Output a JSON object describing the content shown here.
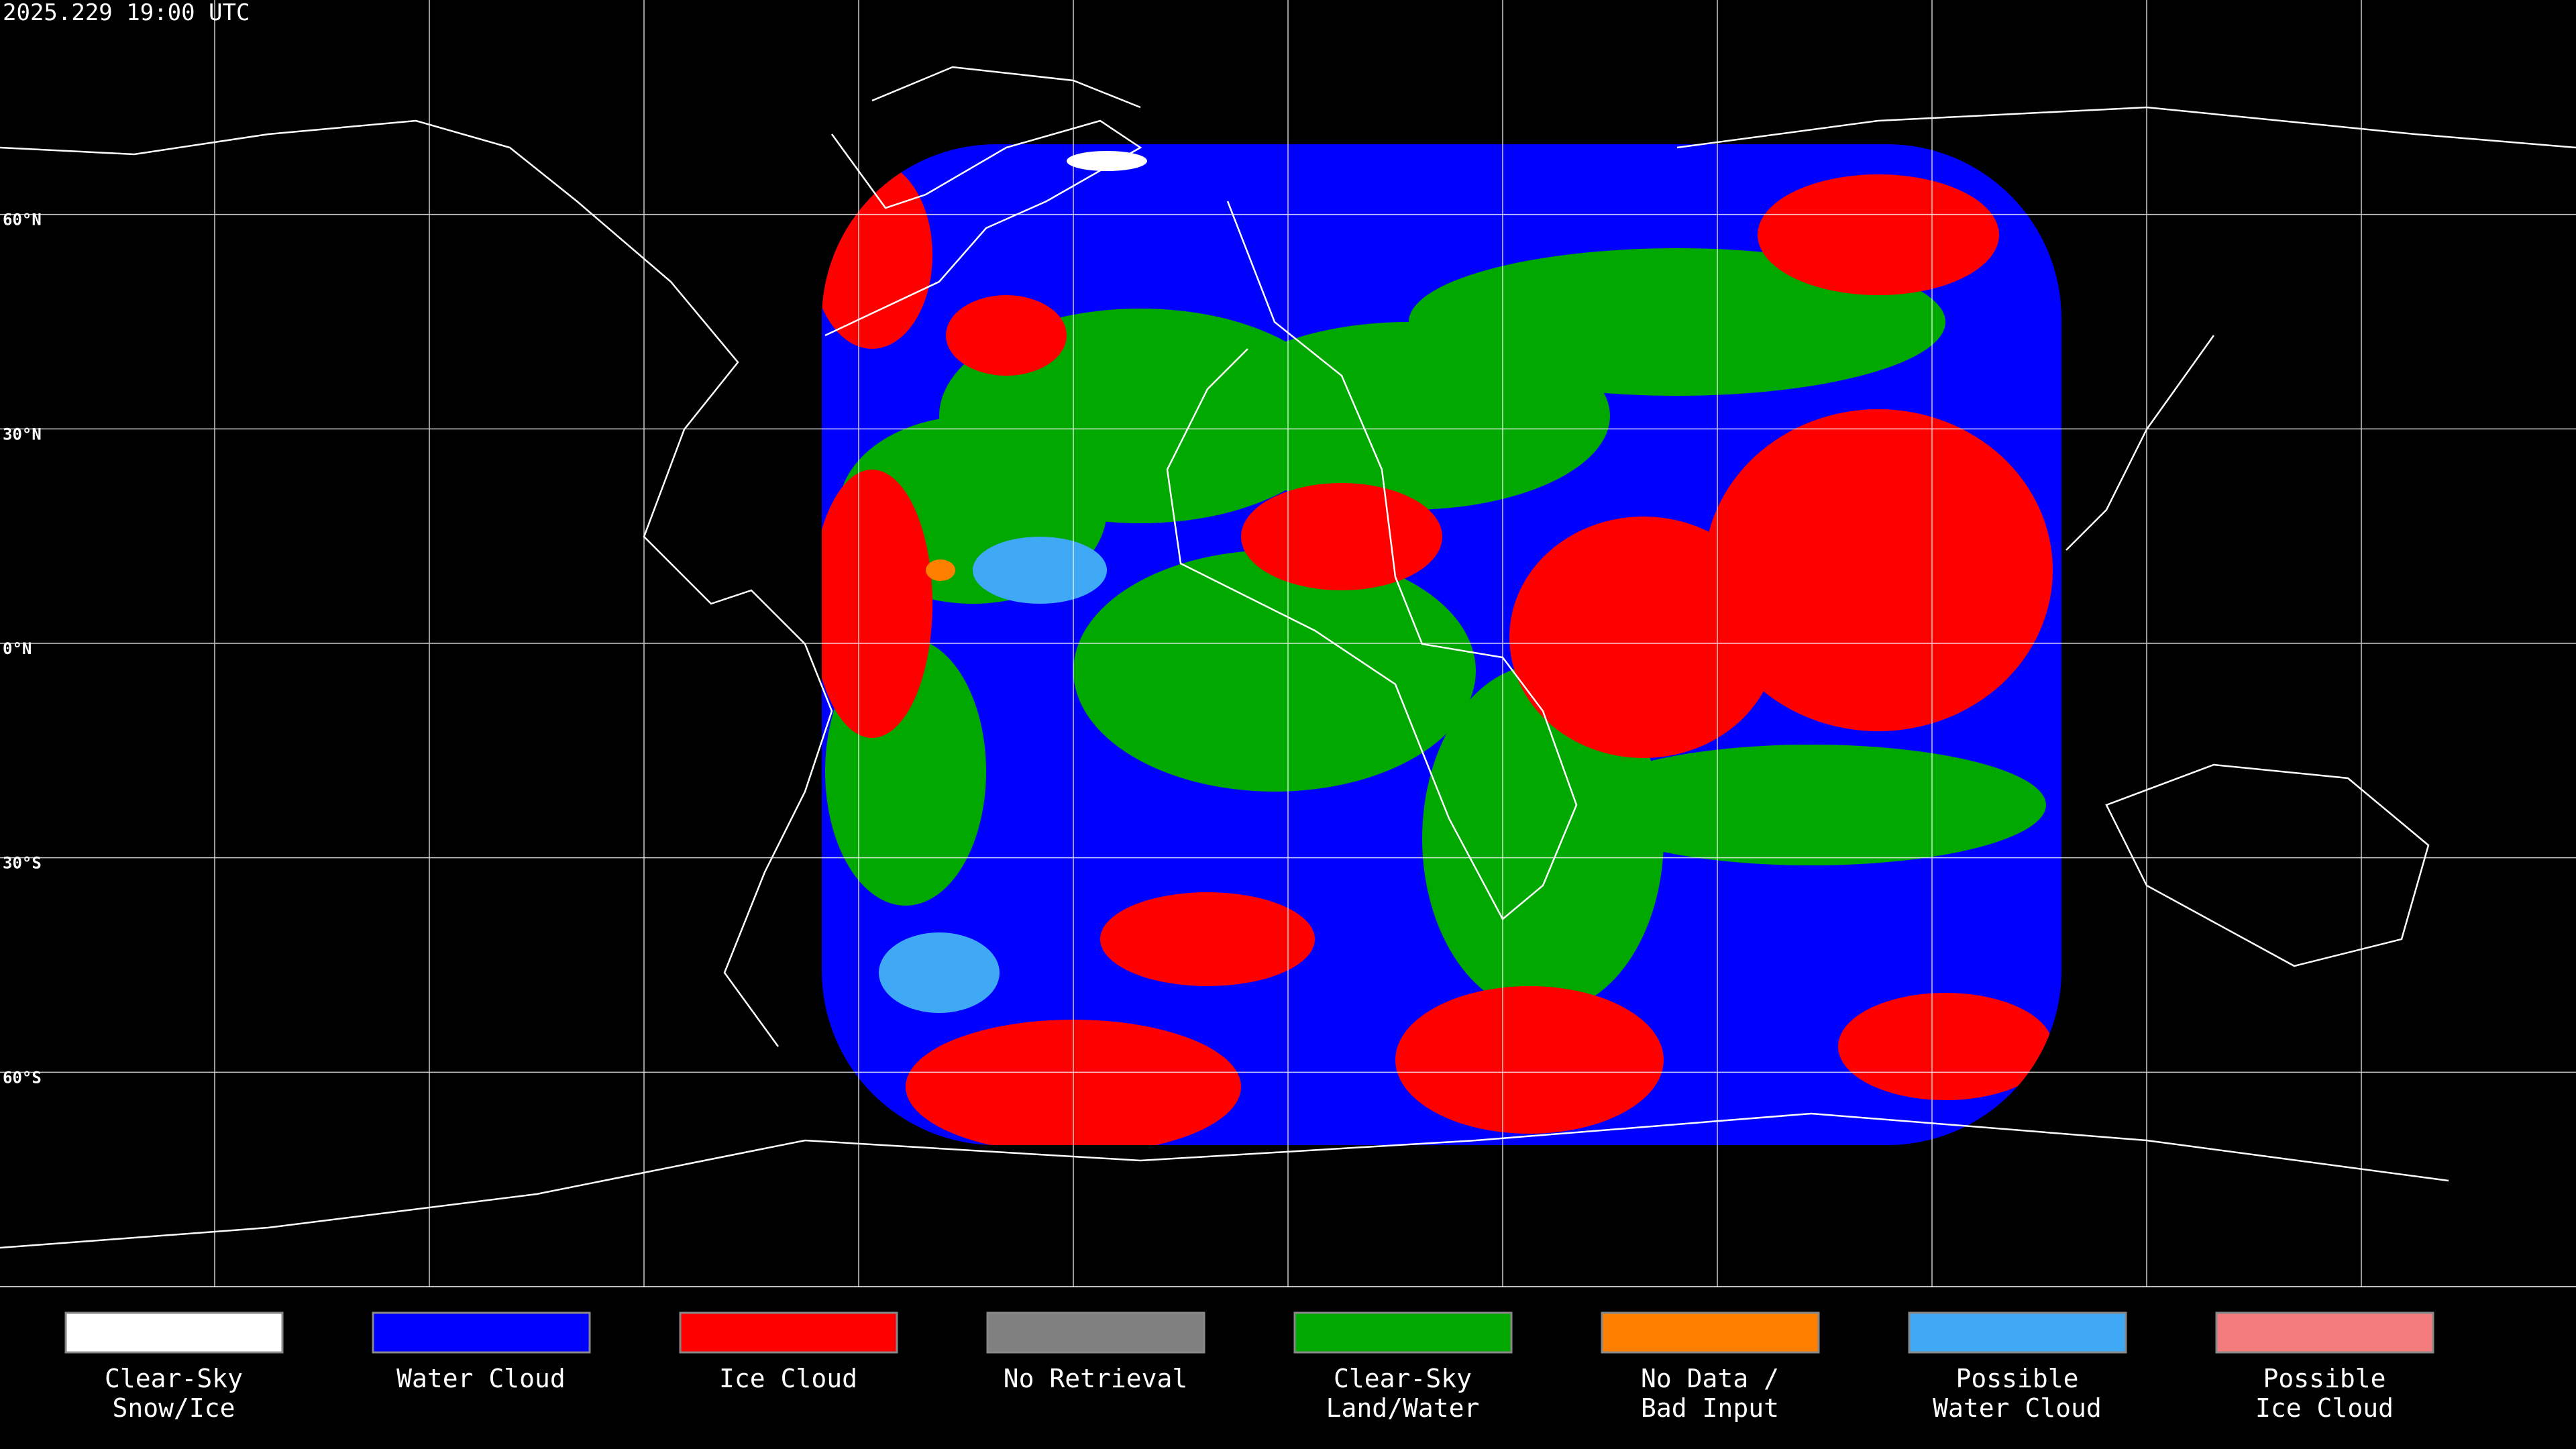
{
  "header": {
    "title": "2025.229 19:00 UTC"
  },
  "map": {
    "lat_labels": [
      "60°N",
      "30°N",
      "0°N",
      "30°S",
      "60°S"
    ]
  },
  "legend": {
    "items": [
      {
        "label": [
          "Clear-Sky",
          "Snow/Ice"
        ],
        "color": "#ffffff"
      },
      {
        "label": [
          "Water Cloud"
        ],
        "color": "#0000ff"
      },
      {
        "label": [
          "Ice Cloud"
        ],
        "color": "#ff0000"
      },
      {
        "label": [
          "No Retrieval"
        ],
        "color": "#808080"
      },
      {
        "label": [
          "Clear-Sky",
          "Land/Water"
        ],
        "color": "#00a800"
      },
      {
        "label": [
          "No Data /",
          "Bad Input"
        ],
        "color": "#ff8000"
      },
      {
        "label": [
          "Possible",
          "Water Cloud"
        ],
        "color": "#3fa9f5"
      },
      {
        "label": [
          "Possible",
          "Ice Cloud"
        ],
        "color": "#f47c7c"
      }
    ]
  }
}
